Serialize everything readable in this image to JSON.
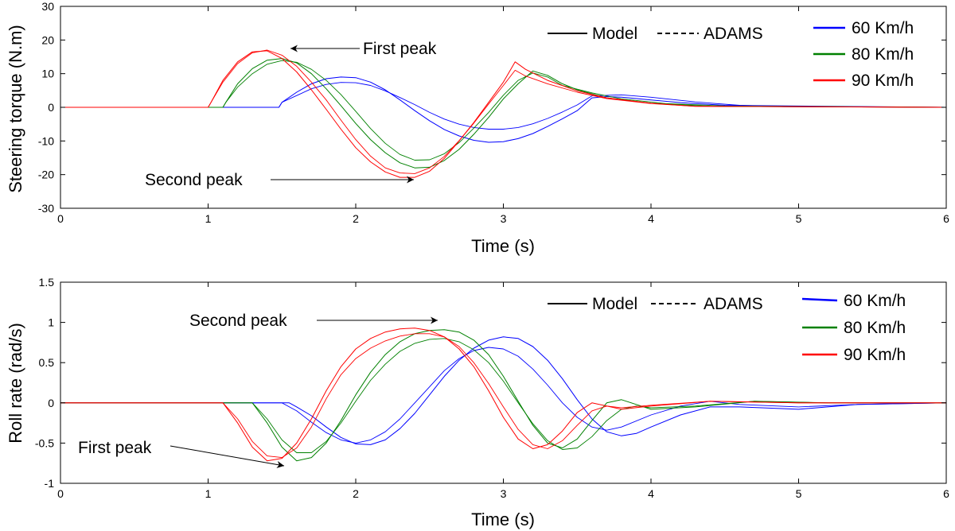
{
  "chart_data": [
    {
      "type": "line",
      "id": "torque",
      "title": "",
      "xlabel": "Time (s)",
      "ylabel": "Steering torque (N.m)",
      "xlim": [
        0,
        6
      ],
      "ylim": [
        -30,
        30
      ],
      "xticks": [
        0,
        1,
        2,
        3,
        4,
        5,
        6
      ],
      "yticks": [
        -30,
        -20,
        -10,
        0,
        10,
        20,
        30
      ],
      "grid": false,
      "legend_style": {
        "model": "Model",
        "adams": "ADAMS"
      },
      "legend_series": [
        {
          "label": "60 Km/h",
          "color": "#0000ff"
        },
        {
          "label": "80 Km/h",
          "color": "#008000"
        },
        {
          "label": "90 Km/h",
          "color": "#ff0000"
        }
      ],
      "annotations": [
        {
          "text": "First peak",
          "arrow_to": [
            1.5,
            17.5
          ]
        },
        {
          "text": "Second peak",
          "arrow_to": [
            2.4,
            -21
          ]
        }
      ],
      "series": [
        {
          "name": "60 Km/h Model",
          "color": "#0000ff",
          "style": "solid",
          "x": [
            0,
            1.48,
            1.5,
            1.6,
            1.7,
            1.8,
            1.9,
            2.0,
            2.1,
            2.2,
            2.3,
            2.4,
            2.5,
            2.6,
            2.7,
            2.8,
            2.9,
            3.0,
            3.1,
            3.2,
            3.3,
            3.4,
            3.5,
            3.6,
            3.7,
            3.8,
            4.0,
            4.2,
            4.5,
            6.0
          ],
          "y": [
            0,
            0,
            1.5,
            4.5,
            7,
            8.5,
            9,
            8.8,
            7.5,
            5.2,
            2.2,
            -1,
            -4,
            -6.6,
            -8.5,
            -9.8,
            -10.4,
            -10.2,
            -9.3,
            -7.8,
            -5.7,
            -3.4,
            -1,
            2.8,
            3.2,
            3,
            2.2,
            1.4,
            0.6,
            0
          ]
        },
        {
          "name": "60 Km/h ADAMS",
          "color": "#0000ff",
          "style": "dashed",
          "x": [
            0,
            1.48,
            1.5,
            1.6,
            1.7,
            1.8,
            1.9,
            2.0,
            2.1,
            2.2,
            2.3,
            2.4,
            2.5,
            2.6,
            2.7,
            2.8,
            2.9,
            3.0,
            3.1,
            3.2,
            3.3,
            3.4,
            3.5,
            3.6,
            3.8,
            4.0,
            4.3,
            4.6,
            4.9,
            6.0
          ],
          "y": [
            0,
            0,
            1.5,
            3.5,
            5.5,
            6.8,
            7.4,
            7.3,
            6.5,
            4.9,
            2.9,
            0.8,
            -1.5,
            -3.5,
            -5,
            -6,
            -6.5,
            -6.5,
            -6,
            -4.9,
            -3.3,
            -1.4,
            0.7,
            3.4,
            3.7,
            3,
            1.6,
            0.6,
            0.2,
            0
          ]
        },
        {
          "name": "80 Km/h Model",
          "color": "#008000",
          "style": "solid",
          "x": [
            0,
            1.1,
            1.12,
            1.2,
            1.3,
            1.4,
            1.5,
            1.6,
            1.7,
            1.8,
            1.9,
            2.0,
            2.1,
            2.2,
            2.3,
            2.4,
            2.5,
            2.6,
            2.7,
            2.8,
            2.9,
            3.0,
            3.1,
            3.2,
            3.3,
            3.4,
            3.5,
            3.7,
            4.0,
            4.4,
            6.0
          ],
          "y": [
            0,
            0,
            1.5,
            7,
            11.5,
            14,
            14.5,
            13.2,
            10,
            5.5,
            0.5,
            -4.8,
            -9.6,
            -13.5,
            -16.5,
            -18,
            -17.8,
            -15.8,
            -12.5,
            -8,
            -3,
            2.5,
            7,
            10.8,
            9.5,
            7,
            5.2,
            2.8,
            1.2,
            0.3,
            0
          ]
        },
        {
          "name": "80 Km/h ADAMS",
          "color": "#008000",
          "style": "dashed",
          "x": [
            0,
            1.1,
            1.12,
            1.2,
            1.3,
            1.4,
            1.5,
            1.6,
            1.7,
            1.8,
            1.9,
            2.0,
            2.1,
            2.2,
            2.3,
            2.4,
            2.5,
            2.6,
            2.7,
            2.8,
            2.9,
            3.0,
            3.1,
            3.2,
            3.3,
            3.4,
            3.6,
            3.8,
            4.1,
            4.5,
            6.0
          ],
          "y": [
            0,
            0,
            1.5,
            6,
            10,
            12.8,
            13.9,
            13.4,
            11.3,
            8,
            3.8,
            -1.2,
            -6.3,
            -10.7,
            -14,
            -15.7,
            -15.6,
            -13.8,
            -10.5,
            -6.2,
            -1.5,
            3.6,
            8,
            10.2,
            9,
            6.5,
            4.3,
            2.5,
            1.1,
            0.4,
            0
          ]
        },
        {
          "name": "90 Km/h Model",
          "color": "#ff0000",
          "style": "solid",
          "x": [
            0,
            1.0,
            1.02,
            1.1,
            1.2,
            1.3,
            1.4,
            1.5,
            1.6,
            1.7,
            1.8,
            1.9,
            2.0,
            2.1,
            2.2,
            2.3,
            2.4,
            2.5,
            2.6,
            2.7,
            2.8,
            2.9,
            3.0,
            3.08,
            3.15,
            3.3,
            3.5,
            3.7,
            4.0,
            4.3,
            6.0
          ],
          "y": [
            0,
            0,
            1.5,
            8,
            13.5,
            16.5,
            16.8,
            14.5,
            10.5,
            5.2,
            -0.6,
            -6.5,
            -12,
            -16.2,
            -19.2,
            -20.8,
            -20.8,
            -19,
            -15.2,
            -10,
            -4.5,
            1.5,
            7.5,
            13.5,
            11.3,
            8,
            4.9,
            2.8,
            1.2,
            0.3,
            0
          ]
        },
        {
          "name": "90 Km/h ADAMS",
          "color": "#ff0000",
          "style": "dashed",
          "x": [
            0,
            1.0,
            1.02,
            1.1,
            1.2,
            1.3,
            1.4,
            1.5,
            1.6,
            1.7,
            1.8,
            1.9,
            2.0,
            2.1,
            2.2,
            2.3,
            2.4,
            2.5,
            2.6,
            2.7,
            2.8,
            2.9,
            3.0,
            3.08,
            3.15,
            3.3,
            3.5,
            3.7,
            4.0,
            4.3,
            6.0
          ],
          "y": [
            0,
            0,
            1.5,
            7.5,
            13,
            16.2,
            17,
            15.5,
            12.2,
            7.5,
            2.2,
            -3.8,
            -9.6,
            -14.5,
            -18,
            -19.5,
            -19.7,
            -18,
            -14.6,
            -9.9,
            -4.7,
            1,
            6.5,
            11,
            9.3,
            7,
            4.5,
            2.6,
            1.1,
            0.3,
            0
          ]
        }
      ]
    },
    {
      "type": "line",
      "id": "rollrate",
      "title": "",
      "xlabel": "Time (s)",
      "ylabel": "Roll rate (rad/s)",
      "xlim": [
        0,
        6
      ],
      "ylim": [
        -1,
        1.5
      ],
      "xticks": [
        0,
        1,
        2,
        3,
        4,
        5,
        6
      ],
      "yticks": [
        -1,
        -0.5,
        0,
        0.5,
        1,
        1.5
      ],
      "grid": false,
      "legend_style": {
        "model": "Model",
        "adams": "ADAMS"
      },
      "legend_series": [
        {
          "label": "60 Km/h",
          "color": "#0000ff"
        },
        {
          "label": "80 Km/h",
          "color": "#008000"
        },
        {
          "label": "90 Km/h",
          "color": "#ff0000"
        }
      ],
      "annotations": [
        {
          "text": "Second peak",
          "arrow_to": [
            2.55,
            1.0
          ]
        },
        {
          "text": "First peak",
          "arrow_to": [
            1.5,
            -0.8
          ]
        }
      ],
      "series": [
        {
          "name": "60 Km/h Model",
          "color": "#0000ff",
          "style": "solid",
          "x": [
            0,
            1.55,
            1.6,
            1.7,
            1.8,
            1.9,
            2.0,
            2.1,
            2.2,
            2.3,
            2.4,
            2.5,
            2.6,
            2.7,
            2.8,
            2.9,
            3.0,
            3.1,
            3.2,
            3.3,
            3.4,
            3.5,
            3.6,
            3.7,
            3.8,
            3.9,
            4.0,
            4.2,
            4.4,
            4.6,
            5.0,
            5.4,
            6.0
          ],
          "y": [
            0,
            0,
            -0.05,
            -0.16,
            -0.3,
            -0.43,
            -0.51,
            -0.52,
            -0.46,
            -0.32,
            -0.13,
            0.1,
            0.33,
            0.53,
            0.68,
            0.78,
            0.82,
            0.8,
            0.7,
            0.53,
            0.3,
            0.04,
            -0.2,
            -0.36,
            -0.41,
            -0.38,
            -0.3,
            -0.15,
            -0.05,
            -0.05,
            -0.08,
            -0.02,
            0
          ]
        },
        {
          "name": "60 Km/h ADAMS",
          "color": "#0000ff",
          "style": "dashed",
          "x": [
            0,
            1.5,
            1.6,
            1.7,
            1.8,
            1.9,
            2.0,
            2.1,
            2.2,
            2.3,
            2.4,
            2.5,
            2.6,
            2.7,
            2.8,
            2.9,
            3.0,
            3.1,
            3.2,
            3.3,
            3.4,
            3.5,
            3.6,
            3.7,
            3.8,
            4.0,
            4.2,
            4.4,
            4.6,
            5.0,
            5.4,
            6.0
          ],
          "y": [
            0,
            0,
            -0.1,
            -0.24,
            -0.37,
            -0.46,
            -0.5,
            -0.46,
            -0.36,
            -0.2,
            0.0,
            0.2,
            0.4,
            0.55,
            0.65,
            0.69,
            0.67,
            0.58,
            0.42,
            0.22,
            0.0,
            -0.18,
            -0.3,
            -0.34,
            -0.3,
            -0.15,
            -0.04,
            0.02,
            -0.02,
            -0.05,
            -0.02,
            0
          ]
        },
        {
          "name": "80 Km/h Model",
          "color": "#008000",
          "style": "solid",
          "x": [
            0,
            1.3,
            1.4,
            1.5,
            1.6,
            1.7,
            1.8,
            1.9,
            2.0,
            2.1,
            2.2,
            2.3,
            2.4,
            2.5,
            2.6,
            2.7,
            2.8,
            2.9,
            3.0,
            3.1,
            3.2,
            3.3,
            3.4,
            3.5,
            3.6,
            3.7,
            3.8,
            3.9,
            4.0,
            4.3,
            4.7,
            5.2,
            6.0
          ],
          "y": [
            0,
            0,
            -0.25,
            -0.55,
            -0.72,
            -0.68,
            -0.5,
            -0.22,
            0.1,
            0.38,
            0.6,
            0.76,
            0.86,
            0.9,
            0.91,
            0.88,
            0.78,
            0.6,
            0.33,
            0.02,
            -0.28,
            -0.5,
            -0.56,
            -0.45,
            -0.22,
            0.0,
            0.04,
            -0.02,
            -0.08,
            -0.05,
            0.02,
            0.0,
            0
          ]
        },
        {
          "name": "80 Km/h ADAMS",
          "color": "#008000",
          "style": "dashed",
          "x": [
            0,
            1.3,
            1.4,
            1.5,
            1.6,
            1.7,
            1.8,
            1.9,
            2.0,
            2.1,
            2.2,
            2.3,
            2.4,
            2.5,
            2.6,
            2.7,
            2.8,
            2.9,
            3.0,
            3.1,
            3.2,
            3.3,
            3.4,
            3.5,
            3.6,
            3.7,
            3.8,
            3.9,
            4.0,
            4.3,
            4.7,
            5.2,
            6.0
          ],
          "y": [
            0,
            0,
            -0.2,
            -0.46,
            -0.62,
            -0.62,
            -0.48,
            -0.25,
            0.02,
            0.28,
            0.48,
            0.64,
            0.74,
            0.79,
            0.8,
            0.76,
            0.66,
            0.5,
            0.27,
            0.0,
            -0.26,
            -0.47,
            -0.58,
            -0.56,
            -0.42,
            -0.22,
            -0.08,
            -0.04,
            -0.06,
            -0.04,
            0.02,
            0.0,
            0
          ]
        },
        {
          "name": "90 Km/h Model",
          "color": "#ff0000",
          "style": "solid",
          "x": [
            0,
            1.1,
            1.2,
            1.3,
            1.4,
            1.5,
            1.6,
            1.7,
            1.8,
            1.9,
            2.0,
            2.1,
            2.2,
            2.3,
            2.4,
            2.5,
            2.6,
            2.7,
            2.8,
            2.9,
            3.0,
            3.1,
            3.2,
            3.3,
            3.4,
            3.5,
            3.6,
            3.7,
            3.8,
            4.0,
            4.4,
            5.0,
            6.0
          ],
          "y": [
            0,
            0,
            -0.25,
            -0.55,
            -0.72,
            -0.69,
            -0.5,
            -0.2,
            0.15,
            0.45,
            0.67,
            0.8,
            0.88,
            0.92,
            0.93,
            0.9,
            0.82,
            0.67,
            0.45,
            0.15,
            -0.18,
            -0.45,
            -0.57,
            -0.52,
            -0.35,
            -0.12,
            0.0,
            -0.04,
            -0.08,
            -0.04,
            0.02,
            0.0,
            0
          ]
        },
        {
          "name": "90 Km/h ADAMS",
          "color": "#ff0000",
          "style": "dashed",
          "x": [
            0,
            1.1,
            1.2,
            1.3,
            1.4,
            1.5,
            1.6,
            1.7,
            1.8,
            1.9,
            2.0,
            2.1,
            2.2,
            2.3,
            2.4,
            2.5,
            2.6,
            2.7,
            2.8,
            2.9,
            3.0,
            3.1,
            3.2,
            3.3,
            3.4,
            3.5,
            3.6,
            3.7,
            3.8,
            4.0,
            4.4,
            5.0,
            6.0
          ],
          "y": [
            0,
            0,
            -0.2,
            -0.48,
            -0.66,
            -0.68,
            -0.56,
            -0.3,
            0.05,
            0.35,
            0.55,
            0.68,
            0.77,
            0.83,
            0.86,
            0.86,
            0.82,
            0.7,
            0.5,
            0.24,
            -0.05,
            -0.33,
            -0.52,
            -0.57,
            -0.47,
            -0.28,
            -0.1,
            -0.04,
            -0.06,
            -0.03,
            0.02,
            0.0,
            0
          ]
        }
      ]
    }
  ]
}
